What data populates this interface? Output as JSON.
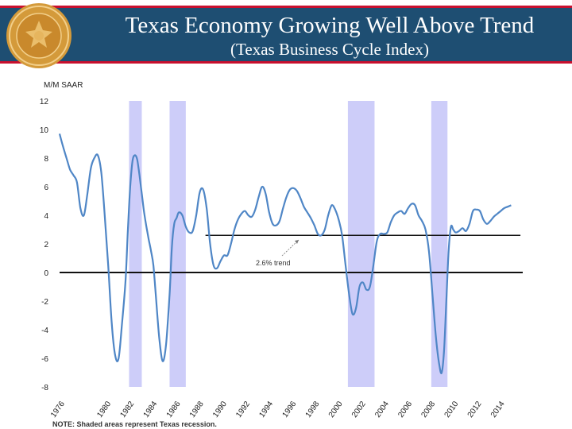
{
  "header": {
    "title": "Texas Economy Growing Well Above Trend",
    "subtitle": "(Texas Business Cycle Index)"
  },
  "colors": {
    "header_bg": "#1e4e72",
    "accent_red": "#c8102e",
    "line": "#4f86c6",
    "recession": "#c8c8f8",
    "seal": "#d49a3a"
  },
  "icons": {
    "seal": "federal-reserve-seal-icon"
  },
  "chart_data": {
    "type": "line",
    "ylabel": "M/M SAAR",
    "ylim": [
      -8,
      12
    ],
    "yticks": [
      12,
      10,
      8,
      6,
      4,
      2,
      0,
      -2,
      -4,
      -6,
      -8
    ],
    "xlim": [
      1976,
      2016
    ],
    "xticks": [
      "1976",
      "1980",
      "1982",
      "1984",
      "1986",
      "1988",
      "1990",
      "1992",
      "1994",
      "1996",
      "1998",
      "2000",
      "2002",
      "2004",
      "2006",
      "2008",
      "2010",
      "2012",
      "2014"
    ],
    "recessions": [
      [
        1982.0,
        1983.1
      ],
      [
        1985.5,
        1986.9
      ],
      [
        2000.9,
        2003.2
      ],
      [
        2008.1,
        2009.5
      ]
    ],
    "trend": {
      "value": 2.6,
      "from": 1988.6,
      "to": 2015.8,
      "label": "2.6% trend"
    },
    "zero_line": true,
    "note": "NOTE: Shaded areas represent Texas recession.",
    "series": [
      {
        "x": [
          1976.0,
          1976.3,
          1976.6,
          1976.9,
          1977.2,
          1977.5,
          1977.8,
          1978.1,
          1978.4,
          1978.7,
          1979.0,
          1979.3,
          1979.6,
          1979.9,
          1980.2,
          1980.5,
          1980.8,
          1981.1,
          1981.4,
          1981.7,
          1981.9,
          1982.1,
          1982.3,
          1982.5,
          1982.7,
          1982.9,
          1983.1,
          1983.3,
          1983.5,
          1983.7,
          1983.9,
          1984.1,
          1984.3,
          1984.6,
          1984.9,
          1985.2,
          1985.5,
          1985.7,
          1985.9,
          1986.1,
          1986.3,
          1986.6,
          1986.9,
          1987.2,
          1987.5,
          1987.8,
          1988.1,
          1988.4,
          1988.7,
          1989.0,
          1989.3,
          1989.6,
          1989.9,
          1990.2,
          1990.5,
          1990.8,
          1991.1,
          1991.4,
          1991.7,
          1992.0,
          1992.3,
          1992.6,
          1992.9,
          1993.2,
          1993.5,
          1993.8,
          1994.1,
          1994.4,
          1994.7,
          1995.0,
          1995.3,
          1995.6,
          1995.9,
          1996.2,
          1996.5,
          1996.8,
          1997.1,
          1997.4,
          1997.7,
          1998.0,
          1998.3,
          1998.6,
          1998.9,
          1999.2,
          1999.5,
          1999.8,
          2000.1,
          2000.4,
          2000.7,
          2001.0,
          2001.3,
          2001.6,
          2001.9,
          2002.2,
          2002.5,
          2002.8,
          2003.1,
          2003.4,
          2003.7,
          2004.0,
          2004.3,
          2004.6,
          2004.9,
          2005.2,
          2005.5,
          2005.8,
          2006.1,
          2006.4,
          2006.7,
          2007.0,
          2007.3,
          2007.6,
          2007.9,
          2008.2,
          2008.5,
          2008.8,
          2009.0,
          2009.2,
          2009.4,
          2009.6,
          2009.8,
          2010.0,
          2010.2,
          2010.5,
          2010.8,
          2011.1,
          2011.4,
          2011.7,
          2012.0,
          2012.3,
          2012.6,
          2012.9,
          2013.2,
          2013.5,
          2013.8,
          2014.1,
          2014.4,
          2014.7,
          2015.0
        ],
        "y": [
          9.7,
          8.8,
          8.0,
          7.2,
          6.8,
          6.3,
          4.5,
          4.0,
          5.5,
          7.3,
          8.0,
          8.2,
          7.0,
          4.0,
          0.5,
          -3.5,
          -5.8,
          -6.0,
          -3.5,
          -0.5,
          3.0,
          6.0,
          7.8,
          8.2,
          7.9,
          6.8,
          5.5,
          4.2,
          3.2,
          2.3,
          1.5,
          0.5,
          -1.5,
          -4.5,
          -6.2,
          -5.0,
          -1.5,
          1.8,
          3.4,
          3.8,
          4.2,
          4.0,
          3.2,
          2.8,
          2.9,
          4.0,
          5.6,
          5.8,
          4.5,
          2.0,
          0.5,
          0.3,
          0.8,
          1.2,
          1.2,
          2.0,
          3.0,
          3.7,
          4.1,
          4.3,
          4.0,
          3.9,
          4.4,
          5.3,
          6.0,
          5.5,
          4.2,
          3.4,
          3.3,
          3.6,
          4.5,
          5.3,
          5.8,
          5.9,
          5.7,
          5.2,
          4.6,
          4.2,
          3.8,
          3.3,
          2.7,
          2.6,
          3.0,
          4.0,
          4.7,
          4.4,
          3.7,
          2.6,
          0.5,
          -1.5,
          -2.9,
          -2.5,
          -1.0,
          -0.7,
          -1.2,
          -1.0,
          0.5,
          2.2,
          2.7,
          2.7,
          2.8,
          3.5,
          4.0,
          4.2,
          4.3,
          4.1,
          4.5,
          4.8,
          4.7,
          4.0,
          3.6,
          3.0,
          1.5,
          -1.5,
          -4.5,
          -6.5,
          -7.0,
          -5.5,
          -2.0,
          1.5,
          3.2,
          3.0,
          2.8,
          2.9,
          3.1,
          2.9,
          3.4,
          4.3,
          4.4,
          4.3,
          3.7,
          3.4,
          3.6,
          3.9,
          4.1,
          4.3,
          4.5,
          4.6,
          4.7
        ]
      }
    ]
  }
}
